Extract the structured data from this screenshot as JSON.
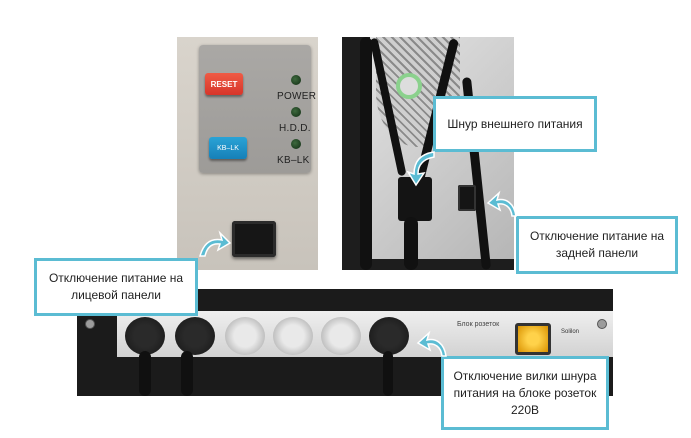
{
  "front_panel": {
    "reset_label": "RESET",
    "kb_button_label": "KB–LK",
    "power_label": "POWER",
    "hdd_label": "H.D.D.",
    "kblk_label": "KB–LK"
  },
  "power_strip": {
    "strip_text": "Блок розеток",
    "brand_text": "Solilon"
  },
  "callouts": {
    "external_cord": "Шнур внешнего питания",
    "rear_switch": "Отключение питание на задней панели",
    "front_switch": "Отключение питание на лицевой панели",
    "strip_plug": "Отключение вилки шнура питания на блоке розеток 220В"
  },
  "colors": {
    "callout_border": "#5bbcd3",
    "arrow_fill": "#5bbcd3"
  }
}
